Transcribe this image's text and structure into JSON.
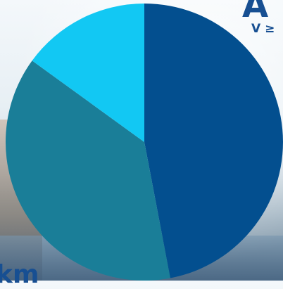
{
  "background": {
    "top_right_heading": "A",
    "top_right_subtext": "V ≥",
    "bottom_left_text": "km"
  },
  "chart_data": {
    "type": "pie",
    "title": "",
    "slices": [
      {
        "label": "",
        "value": 47,
        "color": "#034f8f"
      },
      {
        "label": "",
        "value": 38,
        "color": "#1a7e98"
      },
      {
        "label": "",
        "value": 15,
        "color": "#12c8f3"
      }
    ]
  }
}
